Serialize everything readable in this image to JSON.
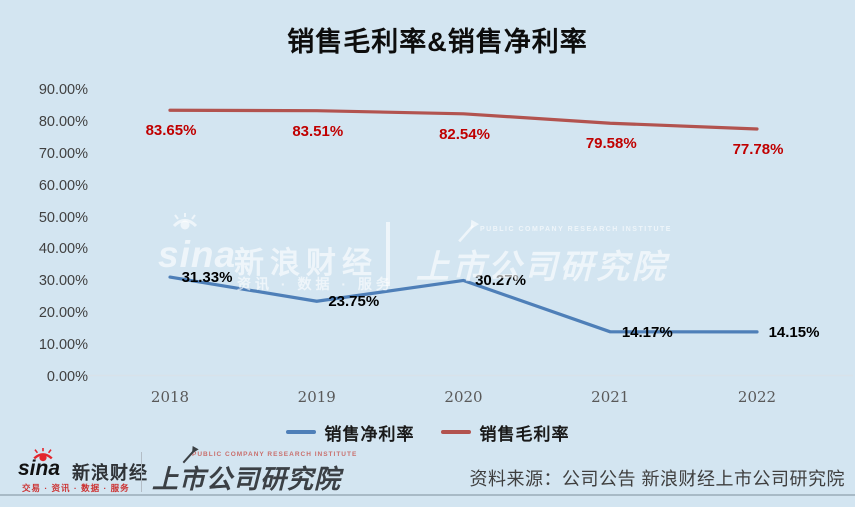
{
  "title": "销售毛利率&销售净利率",
  "colors": {
    "background": "#d3e5f1",
    "net_line": "#4e7fb8",
    "gross_line": "#b2534f",
    "net_label": "#000000",
    "gross_label": "#c00000",
    "axis_line": "#d8e2ea",
    "ytick_text": "#404040",
    "year_text": "#595959"
  },
  "chart_data": {
    "type": "line",
    "title": "销售毛利率&销售净利率",
    "xlabel": "",
    "ylabel": "",
    "categories": [
      "2018",
      "2019",
      "2020",
      "2021",
      "2022"
    ],
    "series": [
      {
        "name": "销售净利率",
        "color": "#4e7fb8",
        "values": [
          31.33,
          23.75,
          30.27,
          14.17,
          14.15
        ],
        "labels": [
          "31.33%",
          "23.75%",
          "30.27%",
          "14.17%",
          "14.15%"
        ],
        "label_color": "#000000"
      },
      {
        "name": "销售毛利率",
        "color": "#b2534f",
        "values": [
          83.65,
          83.51,
          82.54,
          79.58,
          77.78
        ],
        "labels": [
          "83.65%",
          "83.51%",
          "82.54%",
          "79.58%",
          "77.78%"
        ],
        "label_color": "#c00000"
      }
    ],
    "ylim": [
      0,
      90
    ],
    "ytick_step": 10,
    "y_ticks": [
      "0.00%",
      "10.00%",
      "20.00%",
      "30.00%",
      "40.00%",
      "50.00%",
      "60.00%",
      "70.00%",
      "80.00%",
      "90.00%"
    ],
    "grid": false,
    "legend_position": "bottom"
  },
  "legend": {
    "items": [
      {
        "label": "销售净利率",
        "color": "#4e7fb8"
      },
      {
        "label": "销售毛利率",
        "color": "#b2534f"
      }
    ]
  },
  "watermark": {
    "sina": "sina",
    "brand": "新浪财经",
    "tagline": "资讯 · 数据 · 服务",
    "institute_en": "PUBLIC COMPANY RESEARCH INSTITUTE",
    "institute": "上市公司研究院"
  },
  "footer": {
    "sina_logo": {
      "sina": "sina",
      "brand": "新浪财经",
      "tagline": "交易 · 资讯 · 数据 · 服务"
    },
    "institute_logo": {
      "en": "PUBLIC COMPANY RESEARCH INSTITUTE",
      "cn": "上市公司研究院"
    },
    "source": "资料来源：公司公告 新浪财经上市公司研究院"
  }
}
